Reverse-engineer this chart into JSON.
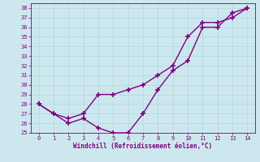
{
  "xlabel": "Windchill (Refroidissement éolien,°C)",
  "xlim": [
    -0.5,
    14.5
  ],
  "ylim": [
    25,
    38.5
  ],
  "yticks": [
    25,
    26,
    27,
    28,
    29,
    30,
    31,
    32,
    33,
    34,
    35,
    36,
    37,
    38
  ],
  "xticks": [
    0,
    1,
    2,
    3,
    4,
    5,
    6,
    7,
    8,
    9,
    10,
    11,
    12,
    13,
    14
  ],
  "bg_color": "#cce8ee",
  "line_color": "#800080",
  "grid_color": "#b0d8e0",
  "line1_x": [
    0,
    1,
    2,
    3,
    4,
    5,
    6,
    7,
    8,
    9,
    10,
    11,
    12,
    13,
    14
  ],
  "line1_y": [
    28,
    27,
    26,
    26.5,
    25.5,
    25,
    25,
    27,
    29.5,
    31.5,
    32.5,
    36,
    36,
    37.5,
    38
  ],
  "line2_x": [
    0,
    1,
    2,
    3,
    4,
    5,
    6,
    7,
    8,
    9,
    10,
    11,
    12,
    13,
    14
  ],
  "line2_y": [
    28,
    27,
    26.5,
    27,
    29,
    29,
    29.5,
    30,
    31,
    32,
    35,
    36.5,
    36.5,
    37,
    38
  ],
  "marker": "+",
  "markersize": 4,
  "linewidth": 1.0
}
